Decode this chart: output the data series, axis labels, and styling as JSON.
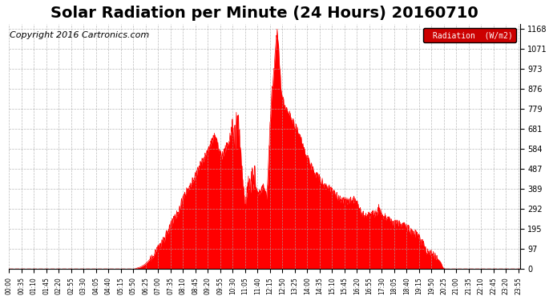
{
  "title": "Solar Radiation per Minute (24 Hours) 20160710",
  "copyright": "Copyright 2016 Cartronics.com",
  "legend_label": "Radiation  (W/m2)",
  "yticks": [
    0.0,
    97.3,
    194.7,
    292.0,
    389.3,
    486.7,
    584.0,
    681.3,
    778.7,
    876.0,
    973.3,
    1070.7,
    1168.0
  ],
  "ymax": 1168.0,
  "ymin": 0.0,
  "fill_color": "#ff0000",
  "line_color": "#cc0000",
  "bg_color": "#ffffff",
  "grid_color": "#aaaaaa",
  "title_fontsize": 14,
  "copyright_fontsize": 8,
  "legend_bg": "#cc0000",
  "legend_text_color": "#ffffff"
}
